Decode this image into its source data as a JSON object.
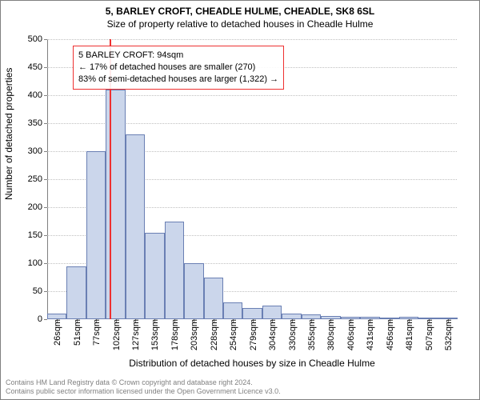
{
  "title": {
    "line1": "5, BARLEY CROFT, CHEADLE HULME, CHEADLE, SK8 6SL",
    "line2": "Size of property relative to detached houses in Cheadle Hulme",
    "fontsize": 12
  },
  "chart": {
    "type": "histogram",
    "background_color": "#ffffff",
    "grid_color": "#c0c0c0",
    "axis_color": "#808080",
    "bar_fill": "#cbd6eb",
    "bar_stroke": "#6a7fb3",
    "bar_stroke_width": 1,
    "marker_color": "#ee3030",
    "marker_x_value": 94,
    "ylim": [
      0,
      500
    ],
    "ytick_step": 50,
    "y_axis_title": "Number of detached properties",
    "x_axis_title": "Distribution of detached houses by size in Cheadle Hulme",
    "x_min": 13,
    "x_max": 545,
    "x_bin_width": 25.4,
    "x_tick_labels": [
      "26sqm",
      "51sqm",
      "77sqm",
      "102sqm",
      "127sqm",
      "153sqm",
      "178sqm",
      "203sqm",
      "228sqm",
      "254sqm",
      "279sqm",
      "304sqm",
      "330sqm",
      "355sqm",
      "380sqm",
      "406sqm",
      "431sqm",
      "456sqm",
      "481sqm",
      "507sqm",
      "532sqm"
    ],
    "values": [
      10,
      95,
      300,
      410,
      330,
      155,
      175,
      100,
      75,
      30,
      20,
      25,
      10,
      8,
      6,
      5,
      4,
      3,
      5,
      3,
      3
    ]
  },
  "info_box": {
    "border_color": "#ee3030",
    "line1": "5 BARLEY CROFT: 94sqm",
    "line2": "← 17% of detached houses are smaller (270)",
    "line3": "83% of semi-detached houses are larger (1,322) →"
  },
  "footer": {
    "line1": "Contains HM Land Registry data © Crown copyright and database right 2024.",
    "line2": "Contains public sector information licensed under the Open Government Licence v3.0."
  }
}
